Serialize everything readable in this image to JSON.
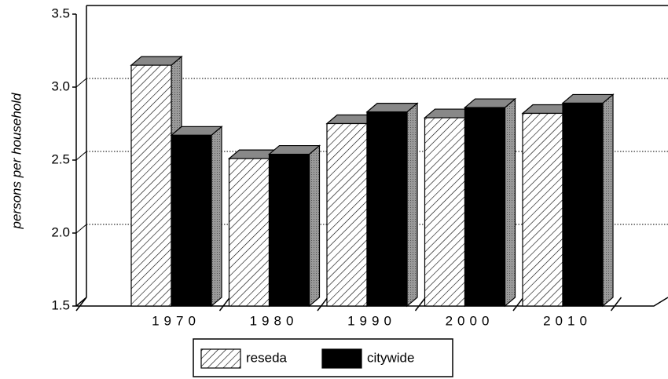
{
  "chart_data": {
    "type": "bar3d",
    "ylabel": "persons per household",
    "categories": [
      "1970",
      "1980",
      "1990",
      "2000",
      "2010"
    ],
    "series": [
      {
        "name": "reseda",
        "color": "#ffffff",
        "pattern": "hatch",
        "values": [
          3.15,
          2.51,
          2.75,
          2.79,
          2.82
        ]
      },
      {
        "name": "citywide",
        "color": "#000000",
        "values": [
          2.67,
          2.54,
          2.83,
          2.86,
          2.89
        ]
      }
    ],
    "ylim": [
      1.5,
      3.5
    ],
    "yticks": [
      1.5,
      {
        "value": 2,
        "label": "2.0"
      },
      2.5,
      {
        "value": 3,
        "label": "3.0"
      },
      3.5
    ],
    "grid": true,
    "legend": "bottom"
  }
}
